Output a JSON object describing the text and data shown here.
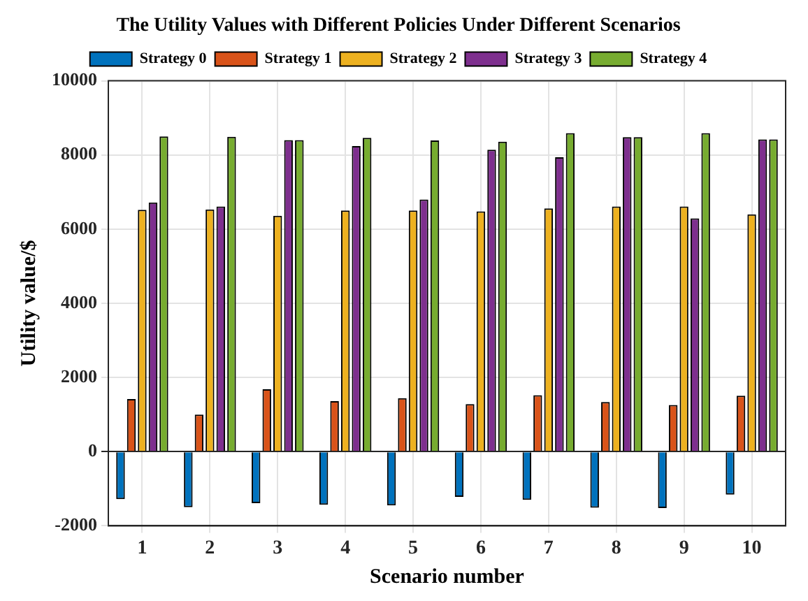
{
  "chart_data": {
    "type": "bar",
    "title": "The Utility Values with Different Policies Under Different Scenarios",
    "xlabel": "Scenario number",
    "ylabel": "Utility value/$",
    "categories": [
      "1",
      "2",
      "3",
      "4",
      "5",
      "6",
      "7",
      "8",
      "9",
      "10"
    ],
    "series": [
      {
        "name": "Strategy 0",
        "color": "#0072bd",
        "values": [
          -1280,
          -1500,
          -1390,
          -1430,
          -1450,
          -1220,
          -1300,
          -1510,
          -1520,
          -1160
        ]
      },
      {
        "name": "Strategy 1",
        "color": "#d95319",
        "values": [
          1420,
          1000,
          1680,
          1360,
          1440,
          1280,
          1520,
          1340,
          1260,
          1510
        ]
      },
      {
        "name": "Strategy 2",
        "color": "#edb120",
        "values": [
          6520,
          6530,
          6360,
          6500,
          6500,
          6480,
          6560,
          6610,
          6610,
          6400
        ]
      },
      {
        "name": "Strategy 3",
        "color": "#7e2f8e",
        "values": [
          6720,
          6610,
          8400,
          8240,
          6800,
          8140,
          7940,
          8480,
          6290,
          8420
        ]
      },
      {
        "name": "Strategy 4",
        "color": "#77ac30",
        "values": [
          8500,
          8490,
          8400,
          8460,
          8390,
          8360,
          8590,
          8480,
          8590,
          8420
        ]
      }
    ],
    "ylim": [
      -2000,
      10000
    ],
    "yticks": [
      -2000,
      0,
      2000,
      4000,
      6000,
      8000,
      10000
    ],
    "grid": true,
    "legend": "top"
  }
}
